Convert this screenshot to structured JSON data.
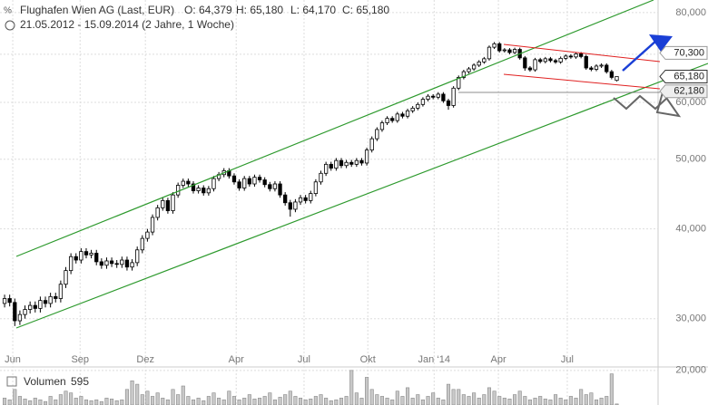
{
  "chart_data": {
    "type": "candlestick",
    "title": "Flughafen Wien AG (Last, EUR)",
    "ohlc_text": [
      "O: 64,379",
      "H: 65,180",
      "L: 64,170",
      "C: 65,180"
    ],
    "subtitle": "21.05.2012 - 15.09.2014 (2 Jahre, 1 Woche)",
    "log_scale": true,
    "grid": true,
    "ylim": [
      27,
      83.3
    ],
    "yticks": [
      {
        "value": 30,
        "label": "30,000"
      },
      {
        "value": 40,
        "label": "40,000"
      },
      {
        "value": 50,
        "label": "50,000"
      },
      {
        "value": 60,
        "label": "60,000"
      },
      {
        "value": 70,
        "label": "70,000"
      },
      {
        "value": 80,
        "label": "80,000"
      }
    ],
    "xlim": [
      -0.9,
      128.1
    ],
    "xticks": [
      {
        "value": 1.6,
        "label": "Jun"
      },
      {
        "value": 14.8,
        "label": "Sep"
      },
      {
        "value": 27.6,
        "label": "Dez"
      },
      {
        "value": 45.4,
        "label": "Apr"
      },
      {
        "value": 58.7,
        "label": "Jul"
      },
      {
        "value": 71.2,
        "label": "Okt"
      },
      {
        "value": 84.2,
        "label": "Jan ‘14"
      },
      {
        "value": 96.8,
        "label": "Apr"
      },
      {
        "value": 110.3,
        "label": "Jul"
      }
    ],
    "open": [
      31.5,
      32.0,
      31.6,
      29.8,
      30.4,
      30.9,
      31.3,
      31.0,
      31.8,
      31.5,
      32.2,
      32.0,
      33.5,
      35.0,
      36.6,
      36.2,
      37.2,
      36.8,
      37.0,
      36.0,
      35.6,
      36.1,
      35.8,
      35.7,
      36.2,
      35.4,
      35.9,
      37.4,
      38.8,
      39.6,
      41.5,
      42.8,
      43.8,
      42.4,
      44.6,
      46.0,
      46.6,
      46.2,
      45.2,
      45.6,
      44.9,
      45.5,
      47.0,
      47.6,
      48.2,
      47.4,
      46.5,
      45.6,
      47.0,
      46.2,
      47.2,
      46.8,
      46.1,
      45.5,
      46.2,
      44.6,
      43.5,
      42.6,
      43.6,
      44.2,
      43.8,
      44.8,
      46.5,
      47.8,
      49.2,
      48.6,
      49.8,
      49.0,
      49.5,
      49.2,
      49.8,
      49.4,
      51.5,
      53.4,
      55.0,
      56.2,
      57.0,
      56.6,
      57.8,
      57.4,
      58.4,
      58.9,
      59.6,
      60.6,
      61.2,
      61.0,
      61.6,
      60.3,
      59.4,
      62.8,
      65.0,
      66.2,
      66.8,
      67.6,
      68.3,
      69.0,
      71.6,
      72.4,
      70.8,
      71.0,
      70.4,
      71.1,
      69.2,
      67.0,
      66.6,
      68.8,
      68.4,
      69.0,
      68.6,
      68.3,
      69.1,
      69.6,
      69.4,
      70.1,
      69.5,
      67.0,
      66.7,
      67.4,
      67.6,
      66.2,
      64.379
    ],
    "high": [
      32.4,
      32.4,
      32.0,
      30.8,
      31.3,
      31.7,
      31.7,
      32.2,
      32.2,
      32.6,
      32.6,
      33.9,
      35.4,
      37.0,
      37.0,
      37.6,
      37.6,
      37.4,
      37.4,
      36.4,
      36.5,
      36.5,
      36.2,
      36.6,
      36.6,
      36.3,
      37.8,
      39.2,
      40.0,
      41.9,
      43.2,
      44.2,
      44.2,
      45.0,
      46.4,
      47.0,
      47.0,
      46.6,
      46.0,
      46.0,
      45.9,
      47.4,
      48.0,
      48.6,
      48.6,
      47.8,
      46.9,
      47.4,
      47.4,
      47.6,
      47.6,
      47.2,
      46.5,
      46.6,
      46.6,
      45.0,
      43.9,
      44.0,
      44.6,
      44.6,
      45.2,
      46.9,
      48.2,
      49.6,
      49.6,
      50.2,
      50.2,
      49.9,
      49.9,
      50.2,
      50.2,
      51.9,
      53.8,
      55.4,
      56.6,
      57.4,
      57.4,
      58.2,
      58.2,
      58.8,
      59.3,
      60.0,
      61.0,
      61.6,
      61.6,
      62.0,
      62.0,
      60.7,
      63.2,
      65.4,
      66.6,
      67.2,
      68.0,
      68.7,
      69.4,
      72.0,
      72.8,
      72.8,
      71.4,
      71.4,
      71.5,
      71.5,
      69.6,
      67.4,
      69.2,
      69.2,
      69.4,
      69.4,
      69.0,
      69.5,
      70.0,
      70.0,
      70.5,
      70.5,
      69.9,
      67.4,
      67.8,
      68.0,
      68.0,
      66.6,
      65.18
    ],
    "low": [
      31.1,
      31.2,
      29.3,
      29.4,
      30.0,
      30.5,
      30.6,
      30.6,
      31.1,
      31.1,
      31.6,
      31.6,
      33.1,
      34.6,
      35.8,
      35.8,
      36.4,
      36.4,
      35.6,
      35.2,
      35.2,
      35.4,
      35.3,
      35.3,
      35.0,
      35.0,
      35.5,
      37.0,
      38.4,
      39.2,
      41.1,
      42.4,
      42.0,
      42.0,
      44.2,
      45.6,
      45.8,
      44.8,
      44.8,
      44.5,
      44.5,
      45.1,
      46.6,
      47.2,
      47.0,
      46.1,
      45.2,
      45.2,
      45.8,
      45.8,
      46.4,
      45.7,
      45.1,
      45.1,
      44.2,
      43.1,
      41.6,
      42.2,
      43.2,
      43.4,
      43.4,
      44.4,
      46.1,
      47.4,
      48.2,
      48.2,
      48.6,
      48.6,
      48.8,
      48.8,
      49.0,
      49.0,
      51.1,
      53.0,
      54.6,
      55.8,
      56.2,
      56.2,
      57.0,
      57.0,
      58.0,
      58.5,
      59.2,
      60.2,
      60.6,
      60.6,
      59.9,
      58.6,
      59.0,
      62.4,
      64.6,
      65.8,
      66.4,
      67.2,
      67.9,
      68.6,
      71.2,
      70.4,
      70.4,
      70.0,
      70.0,
      68.8,
      66.4,
      66.2,
      66.2,
      68.0,
      68.0,
      68.2,
      67.9,
      67.9,
      68.7,
      69.0,
      69.0,
      69.1,
      66.6,
      66.3,
      66.3,
      67.0,
      65.8,
      64.6,
      64.17
    ],
    "close": [
      32.0,
      31.6,
      29.8,
      30.4,
      30.9,
      31.3,
      31.0,
      31.8,
      31.5,
      32.2,
      32.0,
      33.5,
      35.0,
      36.6,
      36.2,
      37.2,
      36.8,
      37.0,
      36.0,
      35.6,
      36.1,
      35.8,
      35.7,
      36.2,
      35.4,
      35.9,
      37.4,
      38.8,
      39.6,
      41.5,
      42.8,
      43.8,
      42.4,
      44.6,
      46.0,
      46.6,
      46.2,
      45.2,
      45.6,
      44.9,
      45.5,
      47.0,
      47.6,
      48.2,
      47.4,
      46.5,
      45.6,
      47.0,
      46.2,
      47.2,
      46.8,
      46.1,
      45.5,
      46.2,
      44.6,
      43.5,
      42.6,
      43.6,
      44.2,
      43.8,
      44.8,
      46.5,
      47.8,
      49.2,
      48.6,
      49.8,
      49.0,
      49.5,
      49.2,
      49.8,
      49.4,
      51.5,
      53.4,
      55.0,
      56.2,
      57.0,
      56.6,
      57.8,
      57.4,
      58.4,
      58.9,
      59.6,
      60.6,
      61.2,
      61.0,
      61.6,
      60.3,
      59.4,
      62.8,
      65.0,
      66.2,
      66.8,
      67.6,
      68.3,
      69.0,
      71.6,
      72.4,
      70.8,
      71.0,
      70.4,
      71.1,
      69.2,
      67.0,
      66.6,
      68.8,
      68.4,
      69.0,
      68.6,
      68.3,
      69.1,
      69.6,
      69.4,
      70.1,
      69.5,
      67.0,
      66.7,
      67.4,
      67.6,
      66.2,
      65.0,
      65.18
    ],
    "price_labels": [
      {
        "value": 70.3,
        "label": "70,300"
      },
      {
        "value": 65.18,
        "label": "65,180"
      },
      {
        "value": 62.18,
        "label": "62,180"
      }
    ],
    "volume": {
      "name": "Volumen",
      "last": 595,
      "ylim": [
        0,
        22000
      ],
      "yticks": [
        {
          "value": 20000,
          "label": "20,000"
        }
      ],
      "values": [
        4000,
        3000,
        9000,
        5000,
        3500,
        2500,
        4000,
        3000,
        2000,
        5000,
        3000,
        6000,
        8000,
        7000,
        4000,
        5000,
        3000,
        2500,
        3000,
        2000,
        4000,
        3500,
        2500,
        3000,
        9000,
        14000,
        12000,
        6000,
        8000,
        5000,
        7000,
        4000,
        3000,
        9000,
        6000,
        11000,
        5000,
        3000,
        4000,
        2500,
        5000,
        7000,
        4000,
        3000,
        8000,
        5000,
        3000,
        4000,
        6000,
        3500,
        4000,
        5000,
        7000,
        3000,
        4500,
        6000,
        8000,
        5000,
        4000,
        3000,
        3500,
        5000,
        6000,
        4000,
        2500,
        3000,
        4000,
        5000,
        20000,
        7000,
        4000,
        16000,
        9000,
        6000,
        5000,
        4000,
        3000,
        8000,
        5000,
        10000,
        4000,
        6000,
        3000,
        5000,
        7000,
        4000,
        3000,
        12000,
        9000,
        9000,
        6000,
        5000,
        7000,
        4000,
        6000,
        10000,
        8000,
        5000,
        4000,
        3500,
        6000,
        8000,
        5000,
        3000,
        4000,
        5000,
        3500,
        3000,
        6000,
        4000,
        3000,
        5000,
        4000,
        9000,
        6000,
        7000,
        3000,
        4000,
        5000,
        18000,
        595
      ]
    }
  }
}
